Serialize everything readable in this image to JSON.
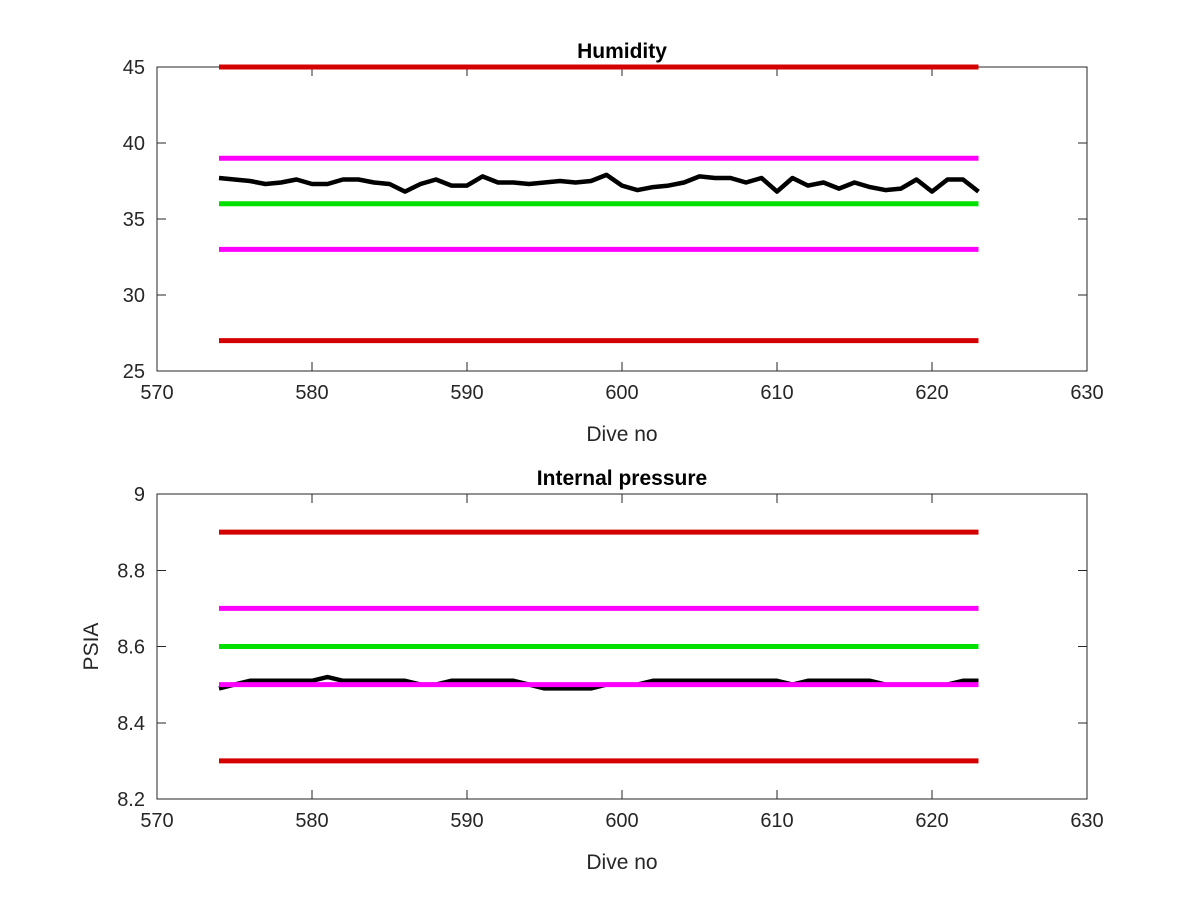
{
  "chart_data": [
    {
      "type": "line",
      "title": "Humidity",
      "xlabel": "Dive no",
      "ylabel": "",
      "xlim": [
        570,
        630
      ],
      "ylim": [
        25,
        45
      ],
      "xticks": [
        570,
        580,
        590,
        600,
        610,
        620,
        630
      ],
      "yticks": [
        25,
        30,
        35,
        40,
        45
      ],
      "grid": false,
      "series": [
        {
          "color": "#d40000",
          "style": "threshold",
          "x": [
            574,
            623
          ],
          "values": [
            45,
            45
          ]
        },
        {
          "color": "#ff00ff",
          "style": "threshold",
          "x": [
            574,
            623
          ],
          "values": [
            39,
            39
          ]
        },
        {
          "color": "#00e000",
          "style": "threshold",
          "x": [
            574,
            623
          ],
          "values": [
            36,
            36
          ]
        },
        {
          "color": "#ff00ff",
          "style": "threshold",
          "x": [
            574,
            623
          ],
          "values": [
            33,
            33
          ]
        },
        {
          "color": "#d40000",
          "style": "threshold",
          "x": [
            574,
            623
          ],
          "values": [
            27,
            27
          ]
        },
        {
          "color": "#000000",
          "style": "measurement",
          "x": [
            574,
            575,
            576,
            577,
            578,
            579,
            580,
            581,
            582,
            583,
            584,
            585,
            586,
            587,
            588,
            589,
            590,
            591,
            592,
            593,
            594,
            595,
            596,
            597,
            598,
            599,
            600,
            601,
            602,
            603,
            604,
            605,
            606,
            607,
            608,
            609,
            610,
            611,
            612,
            613,
            614,
            615,
            616,
            617,
            618,
            619,
            620,
            621,
            622,
            623
          ],
          "values": [
            37.7,
            37.6,
            37.5,
            37.3,
            37.4,
            37.6,
            37.3,
            37.3,
            37.6,
            37.6,
            37.4,
            37.3,
            36.8,
            37.3,
            37.6,
            37.2,
            37.2,
            37.8,
            37.4,
            37.4,
            37.3,
            37.4,
            37.5,
            37.4,
            37.5,
            37.9,
            37.2,
            36.9,
            37.1,
            37.2,
            37.4,
            37.8,
            37.7,
            37.7,
            37.4,
            37.7,
            36.8,
            37.7,
            37.2,
            37.4,
            37.0,
            37.4,
            37.1,
            36.9,
            37.0,
            37.6,
            36.8,
            37.6,
            37.6,
            36.8
          ]
        }
      ]
    },
    {
      "type": "line",
      "title": "Internal pressure",
      "xlabel": "Dive no",
      "ylabel": "PSIA",
      "xlim": [
        570,
        630
      ],
      "ylim": [
        8.2,
        9
      ],
      "xticks": [
        570,
        580,
        590,
        600,
        610,
        620,
        630
      ],
      "yticks": [
        8.2,
        8.4,
        8.6,
        8.8,
        9
      ],
      "grid": false,
      "series": [
        {
          "color": "#d40000",
          "style": "threshold",
          "x": [
            574,
            623
          ],
          "values": [
            8.9,
            8.9
          ]
        },
        {
          "color": "#ff00ff",
          "style": "threshold",
          "x": [
            574,
            623
          ],
          "values": [
            8.7,
            8.7
          ]
        },
        {
          "color": "#00e000",
          "style": "threshold",
          "x": [
            574,
            623
          ],
          "values": [
            8.6,
            8.6
          ]
        },
        {
          "color": "#000000",
          "style": "measurement",
          "x": [
            574,
            575,
            576,
            577,
            578,
            579,
            580,
            581,
            582,
            583,
            584,
            585,
            586,
            587,
            588,
            589,
            590,
            591,
            592,
            593,
            594,
            595,
            596,
            597,
            598,
            599,
            600,
            601,
            602,
            603,
            604,
            605,
            606,
            607,
            608,
            609,
            610,
            611,
            612,
            613,
            614,
            615,
            616,
            617,
            618,
            619,
            620,
            621,
            622,
            623
          ],
          "values": [
            8.49,
            8.5,
            8.51,
            8.51,
            8.51,
            8.51,
            8.51,
            8.52,
            8.51,
            8.51,
            8.51,
            8.51,
            8.51,
            8.5,
            8.5,
            8.51,
            8.51,
            8.51,
            8.51,
            8.51,
            8.5,
            8.49,
            8.49,
            8.49,
            8.49,
            8.5,
            8.5,
            8.5,
            8.51,
            8.51,
            8.51,
            8.51,
            8.51,
            8.51,
            8.51,
            8.51,
            8.51,
            8.5,
            8.51,
            8.51,
            8.51,
            8.51,
            8.51,
            8.5,
            8.5,
            8.5,
            8.5,
            8.5,
            8.51,
            8.51
          ]
        },
        {
          "color": "#ff00ff",
          "style": "threshold",
          "x": [
            574,
            623
          ],
          "values": [
            8.5,
            8.5
          ]
        },
        {
          "color": "#d40000",
          "style": "threshold",
          "x": [
            574,
            623
          ],
          "values": [
            8.3,
            8.3
          ]
        }
      ]
    }
  ]
}
